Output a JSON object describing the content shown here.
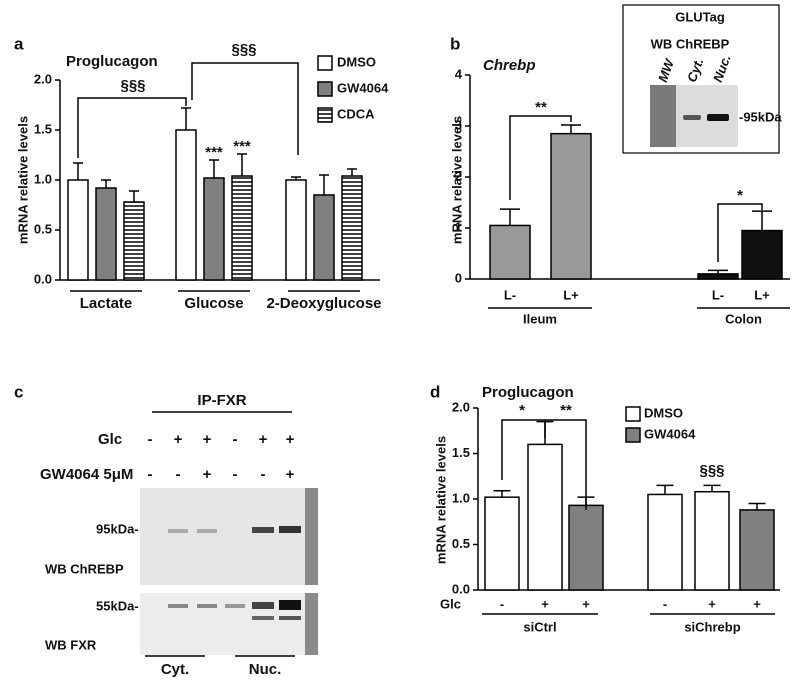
{
  "chart_data": [
    {
      "type": "bar",
      "panel": "a",
      "title": "Proglucagon",
      "y_label": "mRNA relative levels",
      "categories": [
        "Lactate",
        "Glucose",
        "2-Deoxyglucose"
      ],
      "series": [
        {
          "name": "DMSO",
          "color": "#ffffff",
          "values": [
            1.0,
            1.5,
            1.0
          ],
          "errors": [
            0.17,
            0.22,
            0.03
          ]
        },
        {
          "name": "GW4064",
          "color": "#808080",
          "values": [
            0.92,
            1.02,
            0.85
          ],
          "errors": [
            0.08,
            0.18,
            0.2
          ]
        },
        {
          "name": "CDCA",
          "color": "#ffffff",
          "hatch": true,
          "values": [
            0.78,
            1.04,
            1.04
          ],
          "errors": [
            0.11,
            0.22,
            0.07
          ]
        }
      ],
      "ylim": [
        0,
        2
      ],
      "yticks": [
        {
          "value": 0,
          "label": "0.0"
        },
        0.5,
        {
          "value": 1,
          "label": "1.0"
        },
        1.5,
        {
          "value": 2,
          "label": "2.0"
        }
      ],
      "annotations": [
        "§§§",
        "§§§",
        "***",
        "***"
      ]
    },
    {
      "type": "bar",
      "panel": "b",
      "title": "Chrebp",
      "y_label": "mRNA relative levels",
      "categories": [
        "L-",
        "L+",
        "L-",
        "L+"
      ],
      "groups": [
        "Ileum",
        "Colon"
      ],
      "values": [
        1.05,
        2.85,
        0.1,
        0.95
      ],
      "errors": [
        0.32,
        0.17,
        0.07,
        0.38
      ],
      "colors": [
        "#999999",
        "#999999",
        "#111111",
        "#111111"
      ],
      "ylim": [
        0,
        4
      ],
      "yticks": [
        0,
        1,
        2,
        3,
        4
      ],
      "annotations": [
        "**",
        "*"
      ],
      "inset": {
        "title": "GLUTag",
        "subtitle": "WB ChREBP",
        "lanes": [
          "MW",
          "Cyt.",
          "Nuc."
        ],
        "marker": "-95kDa"
      }
    },
    {
      "type": "bar",
      "panel": "d",
      "title": "Proglucagon",
      "y_label": "mRNA relative levels",
      "row_label": "Glc",
      "categories": [
        "-",
        "+",
        "+",
        "-",
        "+",
        "+"
      ],
      "groups": [
        "siCtrl",
        "siChrebp"
      ],
      "series": [
        {
          "name": "DMSO",
          "color": "#ffffff",
          "values": [
            1.02,
            1.6,
            null,
            1.05,
            1.08,
            null
          ],
          "errors": [
            0.07,
            0.25,
            null,
            0.1,
            0.07,
            null
          ]
        },
        {
          "name": "GW4064",
          "color": "#808080",
          "values": [
            null,
            null,
            0.93,
            null,
            null,
            0.88
          ],
          "errors": [
            null,
            null,
            0.09,
            null,
            null,
            0.07
          ]
        }
      ],
      "ylim": [
        0,
        2
      ],
      "yticks": [
        {
          "value": 0,
          "label": "0.0"
        },
        0.5,
        {
          "value": 1,
          "label": "1.0"
        },
        1.5,
        {
          "value": 2,
          "label": "2.0"
        }
      ],
      "annotations": [
        "*",
        "**",
        "§§§"
      ]
    }
  ],
  "blot": {
    "panel": "c",
    "title": "IP-FXR",
    "rows": [
      {
        "label": "Glc",
        "lanes": [
          "-",
          "+",
          "+",
          "-",
          "+",
          "+"
        ]
      },
      {
        "label": "GW4064 5μM",
        "lanes": [
          "-",
          "-",
          "+",
          "-",
          "-",
          "+"
        ]
      }
    ],
    "markers": [
      "95kDa-",
      "55kDa-"
    ],
    "blots": [
      "WB ChREBP",
      "WB FXR"
    ],
    "groups": [
      "Cyt.",
      "Nuc."
    ]
  }
}
